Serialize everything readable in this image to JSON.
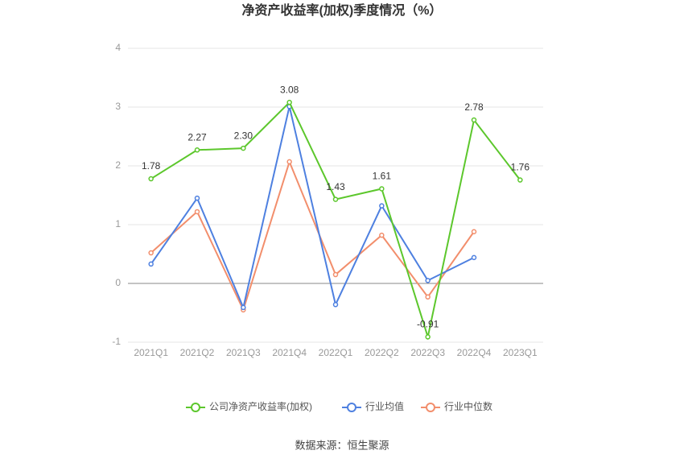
{
  "chart_data": {
    "type": "line",
    "title": "净资产收益率(加权)季度情况（%）",
    "categories": [
      "2021Q1",
      "2021Q2",
      "2021Q3",
      "2021Q4",
      "2022Q1",
      "2022Q2",
      "2022Q3",
      "2022Q4",
      "2023Q1"
    ],
    "series": [
      {
        "name": "公司净资产收益率(加权)",
        "color": "#5cc72c",
        "values": [
          1.78,
          2.27,
          2.3,
          3.08,
          1.43,
          1.61,
          -0.91,
          2.78,
          1.76
        ],
        "value_labels": [
          "1.78",
          "2.27",
          "2.30",
          "3.08",
          "1.43",
          "1.61",
          "-0.91",
          "2.78",
          "1.76"
        ]
      },
      {
        "name": "行业均值",
        "color": "#4e80e0",
        "values": [
          0.33,
          1.45,
          -0.41,
          3.01,
          -0.36,
          1.32,
          0.05,
          0.44,
          null
        ]
      },
      {
        "name": "行业中位数",
        "color": "#f28e6c",
        "values": [
          0.52,
          1.22,
          -0.45,
          2.07,
          0.15,
          0.82,
          -0.23,
          0.88,
          null
        ]
      }
    ],
    "ylim": [
      -1,
      4
    ],
    "yticks": [
      -1,
      0,
      1,
      2,
      3,
      4
    ],
    "grid": true,
    "source": "数据来源：恒生聚源"
  }
}
